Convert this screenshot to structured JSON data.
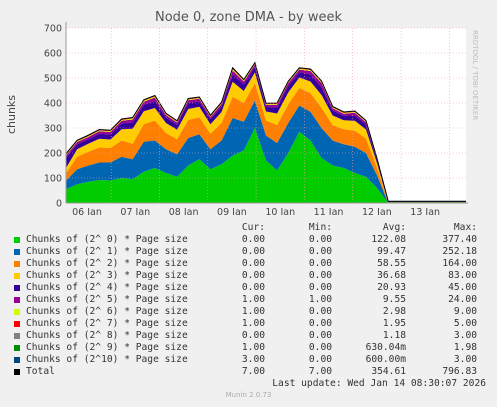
{
  "chart_data": {
    "type": "area",
    "title": "Node 0, zone DMA - by week",
    "ylabel": "chunks",
    "ylim": [
      0,
      700
    ],
    "yticks": [
      0,
      100,
      200,
      300,
      400,
      500,
      600,
      700
    ],
    "x_tick_labels": [
      "06 Jan",
      "07 Jan",
      "08 Jan",
      "09 Jan",
      "10 Jan",
      "11 Jan",
      "12 Jan",
      "13 Jan"
    ],
    "stacked": true,
    "series": [
      {
        "name": "Chunks of (2^ 0) * Page size",
        "color": "#00cc00",
        "cur": "0.00",
        "min": "0.00",
        "avg": "122.08",
        "max": "377.40",
        "values": [
          55,
          75,
          85,
          92,
          90,
          100,
          95,
          125,
          140,
          120,
          105,
          150,
          175,
          135,
          155,
          190,
          210,
          300,
          170,
          130,
          200,
          285,
          250,
          180,
          150,
          140,
          120,
          105,
          60,
          0,
          0,
          0,
          0,
          0,
          0,
          0,
          0
        ]
      },
      {
        "name": "Chunks of (2^ 1) * Page size",
        "color": "#0066b3",
        "cur": "0.00",
        "min": "0.00",
        "avg": "99.47",
        "max": "252.18",
        "values": [
          35,
          60,
          65,
          70,
          72,
          85,
          80,
          120,
          110,
          95,
          90,
          110,
          100,
          80,
          95,
          150,
          115,
          110,
          100,
          110,
          120,
          105,
          115,
          120,
          100,
          95,
          105,
          95,
          50,
          0,
          0,
          0,
          0,
          0,
          0,
          0,
          0
        ]
      },
      {
        "name": "Chunks of (2^ 2) * Page size",
        "color": "#ff8000",
        "cur": "0.00",
        "min": "0.00",
        "avg": "58.55",
        "max": "164.00",
        "values": [
          30,
          50,
          55,
          60,
          58,
          65,
          62,
          70,
          80,
          65,
          60,
          72,
          68,
          62,
          70,
          85,
          75,
          70,
          60,
          72,
          74,
          70,
          75,
          80,
          62,
          60,
          64,
          58,
          30,
          0,
          0,
          0,
          0,
          0,
          0,
          0,
          0
        ]
      },
      {
        "name": "Chunks of (2^ 3) * Page size",
        "color": "#ffcc00",
        "cur": "0.00",
        "min": "0.00",
        "avg": "36.68",
        "max": "83.00",
        "values": [
          20,
          30,
          32,
          35,
          34,
          45,
          60,
          52,
          50,
          40,
          38,
          44,
          42,
          38,
          44,
          60,
          48,
          42,
          36,
          46,
          48,
          42,
          46,
          52,
          38,
          36,
          40,
          36,
          18,
          0,
          0,
          0,
          0,
          0,
          0,
          0,
          0
        ]
      },
      {
        "name": "Chunks of (2^ 4) * Page size",
        "color": "#330099",
        "cur": "0.00",
        "min": "0.00",
        "avg": "20.93",
        "max": "45.00",
        "values": [
          40,
          20,
          18,
          20,
          20,
          24,
          25,
          26,
          28,
          22,
          20,
          24,
          22,
          20,
          22,
          30,
          26,
          22,
          18,
          24,
          26,
          22,
          28,
          30,
          20,
          18,
          22,
          20,
          10,
          0,
          0,
          0,
          0,
          0,
          0,
          0,
          0
        ]
      },
      {
        "name": "Chunks of (2^ 5) * Page size",
        "color": "#990099",
        "cur": "1.00",
        "min": "1.00",
        "avg": "9.55",
        "max": "24.00",
        "values": [
          10,
          9,
          9,
          10,
          10,
          10,
          12,
          12,
          14,
          10,
          9,
          11,
          10,
          9,
          10,
          15,
          12,
          10,
          8,
          11,
          12,
          10,
          14,
          18,
          9,
          8,
          10,
          9,
          5,
          1,
          1,
          1,
          1,
          1,
          1,
          1,
          1
        ]
      },
      {
        "name": "Chunks of (2^ 6) * Page size",
        "color": "#ccff00",
        "cur": "1.00",
        "min": "0.00",
        "avg": "2.98",
        "max": "9.00",
        "values": [
          3,
          3,
          3,
          3,
          3,
          3,
          4,
          4,
          4,
          3,
          3,
          3,
          3,
          3,
          3,
          5,
          4,
          3,
          3,
          3,
          3,
          3,
          4,
          4,
          3,
          3,
          3,
          3,
          2,
          1,
          1,
          1,
          1,
          1,
          1,
          1,
          1
        ]
      },
      {
        "name": "Chunks of (2^ 7) * Page size",
        "color": "#ff0000",
        "cur": "1.00",
        "min": "0.00",
        "avg": "1.95",
        "max": "5.00",
        "values": [
          2,
          2,
          2,
          2,
          2,
          2,
          2,
          2,
          2,
          2,
          2,
          2,
          2,
          2,
          2,
          3,
          2,
          2,
          2,
          2,
          2,
          2,
          2,
          2,
          2,
          2,
          2,
          2,
          1,
          1,
          1,
          1,
          1,
          1,
          1,
          1,
          1
        ]
      },
      {
        "name": "Chunks of (2^ 8) * Page size",
        "color": "#808080",
        "cur": "0.00",
        "min": "0.00",
        "avg": "1.18",
        "max": "3.00",
        "values": [
          1,
          1,
          1,
          1,
          1,
          1,
          1,
          1,
          1,
          1,
          1,
          1,
          1,
          1,
          1,
          2,
          1,
          1,
          1,
          1,
          1,
          1,
          1,
          1,
          1,
          1,
          1,
          1,
          1,
          0,
          0,
          0,
          0,
          0,
          0,
          0,
          0
        ]
      },
      {
        "name": "Chunks of (2^ 9) * Page size",
        "color": "#008f00",
        "cur": "1.00",
        "min": "0.00",
        "avg": "630.04m",
        "max": "1.98",
        "values": [
          1,
          1,
          1,
          1,
          1,
          1,
          1,
          1,
          1,
          1,
          1,
          1,
          1,
          1,
          1,
          1,
          1,
          1,
          1,
          1,
          1,
          1,
          1,
          1,
          1,
          1,
          1,
          1,
          0,
          1,
          1,
          1,
          1,
          1,
          1,
          1,
          1
        ]
      },
      {
        "name": "Chunks of (2^10) * Page size",
        "color": "#00487d",
        "cur": "3.00",
        "min": "0.00",
        "avg": "600.00m",
        "max": "3.00",
        "values": [
          0,
          0,
          0,
          0,
          0,
          0,
          0,
          0,
          0,
          0,
          0,
          0,
          0,
          0,
          0,
          0,
          0,
          0,
          0,
          0,
          0,
          0,
          0,
          0,
          0,
          0,
          0,
          0,
          0,
          3,
          3,
          3,
          3,
          3,
          3,
          3,
          3
        ]
      }
    ],
    "total": {
      "name": "Total",
      "color": "#000000",
      "cur": "7.00",
      "min": "7.00",
      "avg": "354.61",
      "max": "796.83"
    }
  },
  "legend_headers": {
    "cur": "Cur:",
    "min": "Min:",
    "avg": "Avg:",
    "max": "Max:"
  },
  "last_update": "Last update: Wed Jan 14 08:30:07 2026",
  "side_text": "RRDTOOL / TOBI OETIKER",
  "footer": "Munin 2.0.73"
}
